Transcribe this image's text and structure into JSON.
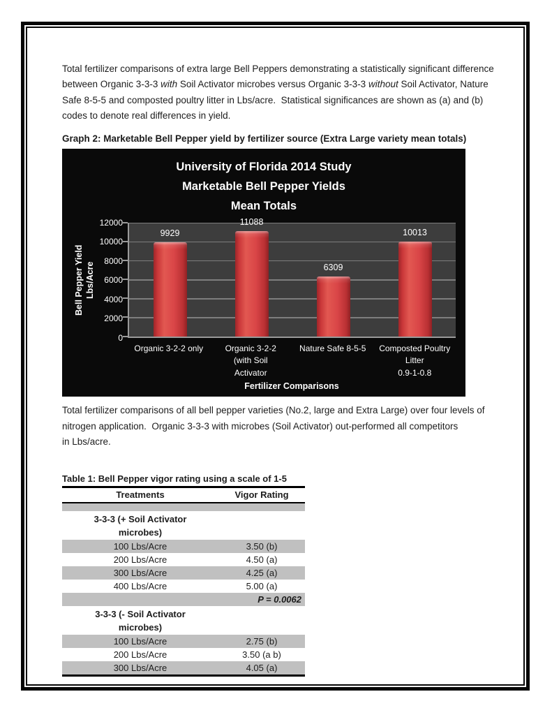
{
  "intro": {
    "segments": [
      {
        "text": "Total fertilizer comparisons of extra large Bell Peppers demonstrating a statistically significant difference",
        "italic": false,
        "break": true
      },
      {
        "text": "between Organic 3-3-3 ",
        "italic": false,
        "break": false
      },
      {
        "text": "with",
        "italic": true,
        "break": false
      },
      {
        "text": " Soil Activator microbes versus Organic 3-3-3 ",
        "italic": false,
        "break": false
      },
      {
        "text": "without",
        "italic": true,
        "break": false
      },
      {
        "text": " Soil Activator, Nature",
        "italic": false,
        "break": true
      },
      {
        "text": "Safe 8-5-5 and composted poultry litter in Lbs/acre.  Statistical significances are shown as (a) and (b)",
        "italic": false,
        "break": true
      },
      {
        "text": "codes to denote real differences in yield.",
        "italic": false,
        "break": false
      }
    ]
  },
  "graph": {
    "caption": "Graph 2: Marketable Bell Pepper yield by fertilizer source (Extra Large variety mean totals)"
  },
  "chart_data": {
    "type": "bar",
    "title_lines": [
      "University of Florida 2014 Study",
      "Marketable Bell Pepper Yields",
      "Mean Totals"
    ],
    "categories": [
      "Organic 3-2-2 only",
      "Organic 3-2-2 (with Soil Activator",
      "Nature Safe 8-5-5",
      "Composted Poultry Litter 0.9-1-0.8"
    ],
    "category_lines": [
      [
        "Organic 3-2-2 only"
      ],
      [
        "Organic 3-2-2",
        "(with Soil",
        "Activator"
      ],
      [
        "Nature Safe 8-5-5"
      ],
      [
        "Composted Poultry",
        "Litter",
        "0.9-1-0.8"
      ]
    ],
    "values": [
      9929,
      11088,
      6309,
      10013
    ],
    "xlabel": "Fertilizer Comparisons",
    "ylabel": "Bell Pepper Yield Lbs/Acre",
    "ylabel_lines": [
      "Bell Pepper Yield",
      "Lbs/Acre"
    ],
    "ylim": [
      0,
      12000
    ],
    "yticks": [
      0,
      2000,
      4000,
      6000,
      8000,
      10000,
      12000
    ],
    "grid": true,
    "legend": false,
    "colors": {
      "chart_bg": "#0a0a0a",
      "plot_bg": "#3d3d3d",
      "gridline": "#7e7e7e",
      "bar": "#d94547",
      "text": "#ffffff"
    }
  },
  "summary": {
    "lines": [
      "Total fertilizer comparisons of all bell pepper varieties (No.2, large and Extra Large) over four levels of",
      "nitrogen application.  Organic 3-3-3 with microbes (Soil Activator) out-performed all competitors",
      "in Lbs/acre."
    ]
  },
  "table": {
    "title": "Table 1: Bell Pepper vigor rating using a scale of 1-5",
    "columns": [
      "Treatments",
      "Vigor Rating"
    ],
    "shade_color": "#c0c0c0",
    "rows": [
      {
        "type": "spacer",
        "treatment": "",
        "rating": "",
        "shaded": true
      },
      {
        "type": "section",
        "treatment": "3-3-3 (+ Soil Activator microbes)",
        "rating": "",
        "shaded": false
      },
      {
        "type": "data",
        "treatment": "100 Lbs/Acre",
        "rating": "3.50 (b)",
        "shaded": true
      },
      {
        "type": "data",
        "treatment": "200 Lbs/Acre",
        "rating": "4.50 (a)",
        "shaded": false
      },
      {
        "type": "data",
        "treatment": "300 Lbs/Acre",
        "rating": "4.25 (a)",
        "shaded": true
      },
      {
        "type": "data",
        "treatment": "400 Lbs/Acre",
        "rating": "5.00 (a)",
        "shaded": false
      },
      {
        "type": "pvalue",
        "treatment": "",
        "rating": "P = 0.0062",
        "shaded": true
      },
      {
        "type": "section",
        "treatment": "3-3-3 (- Soil Activator microbes)",
        "rating": "",
        "shaded": false
      },
      {
        "type": "data",
        "treatment": "100 Lbs/Acre",
        "rating": "2.75 (b)",
        "shaded": true
      },
      {
        "type": "data",
        "treatment": "200 Lbs/Acre",
        "rating": "3.50 (a b)",
        "shaded": false
      },
      {
        "type": "data",
        "treatment": "300 Lbs/Acre",
        "rating": "4.05 (a)",
        "shaded": true
      }
    ]
  }
}
